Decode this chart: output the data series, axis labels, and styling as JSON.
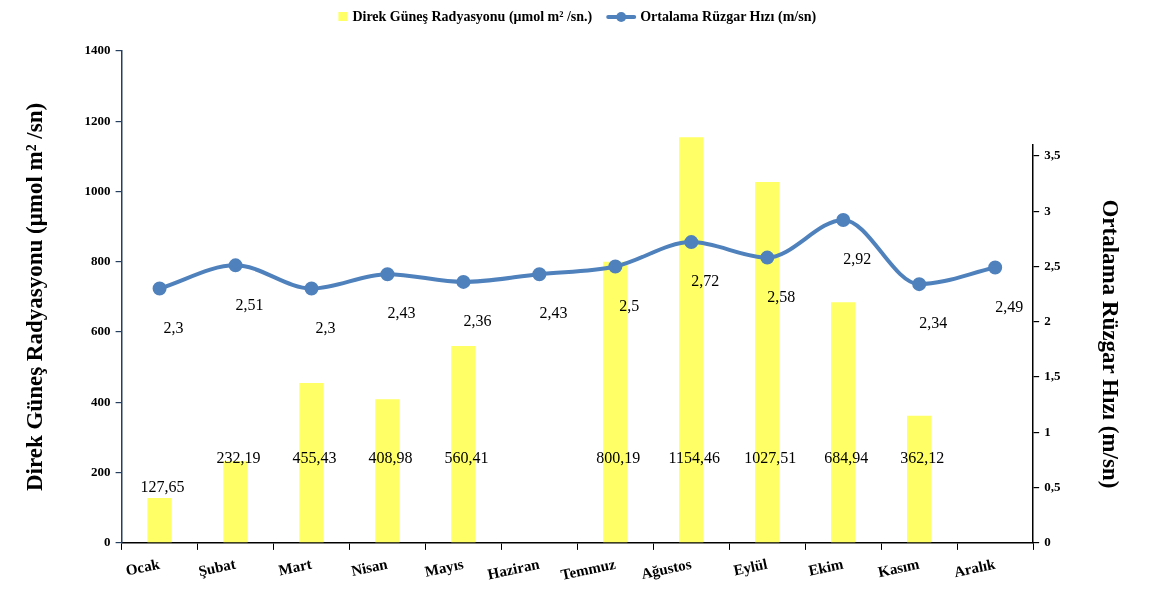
{
  "chart_data": {
    "type": "bar",
    "categories": [
      "Ocak",
      "Şubat",
      "Mart",
      "Nisan",
      "Mayıs",
      "Haziran",
      "Temmuz",
      "Ağustos",
      "Eylül",
      "Ekim",
      "Kasım",
      "Aralık"
    ],
    "series": [
      {
        "name": "Direk Güneş Radyasyonu (μmol m² /sn.)",
        "color": "#ffff66",
        "values": [
          127.65,
          232.19,
          455.43,
          408.98,
          560.41,
          null,
          800.19,
          1154.46,
          1027.51,
          684.94,
          362.12,
          null
        ],
        "value_labels": [
          "127,65",
          "232,19",
          "455,43",
          "408,98",
          "560,41",
          null,
          "800,19",
          "1154,46",
          "1027,51",
          "684,94",
          "362,12",
          null
        ]
      },
      {
        "name": "Ortalama Rüzgar Hızı (m/sn)",
        "type": "line",
        "axis": "y2",
        "color": "#4f81bd",
        "values": [
          2.3,
          2.51,
          2.3,
          2.43,
          2.36,
          2.43,
          2.5,
          2.72,
          2.58,
          2.92,
          2.34,
          2.49
        ],
        "value_labels": [
          "2,3",
          "2,51",
          "2,3",
          "2,43",
          "2,36",
          "2,43",
          "2,5",
          "2,72",
          "2,58",
          "2,92",
          "2,34",
          "2,49"
        ]
      }
    ],
    "ylabel": "Direk Güneş Radyasyonu (μmol m² /sn)",
    "y2label": "Ortalama Rüzgar Hızı (m/sn)",
    "ylim": [
      0,
      1400
    ],
    "yticks": [
      0,
      200,
      400,
      600,
      800,
      1000,
      1200,
      1400
    ],
    "y2lim": [
      0,
      3.6
    ],
    "y2ticks": [
      0,
      {
        "value": 0.5,
        "label": "0,5"
      },
      1,
      {
        "value": 1.5,
        "label": "1,5"
      },
      2,
      {
        "value": 2.5,
        "label": "2,5"
      },
      3,
      {
        "value": 3.5,
        "label": "3,5"
      }
    ],
    "legend": "top",
    "marker": "circle"
  }
}
